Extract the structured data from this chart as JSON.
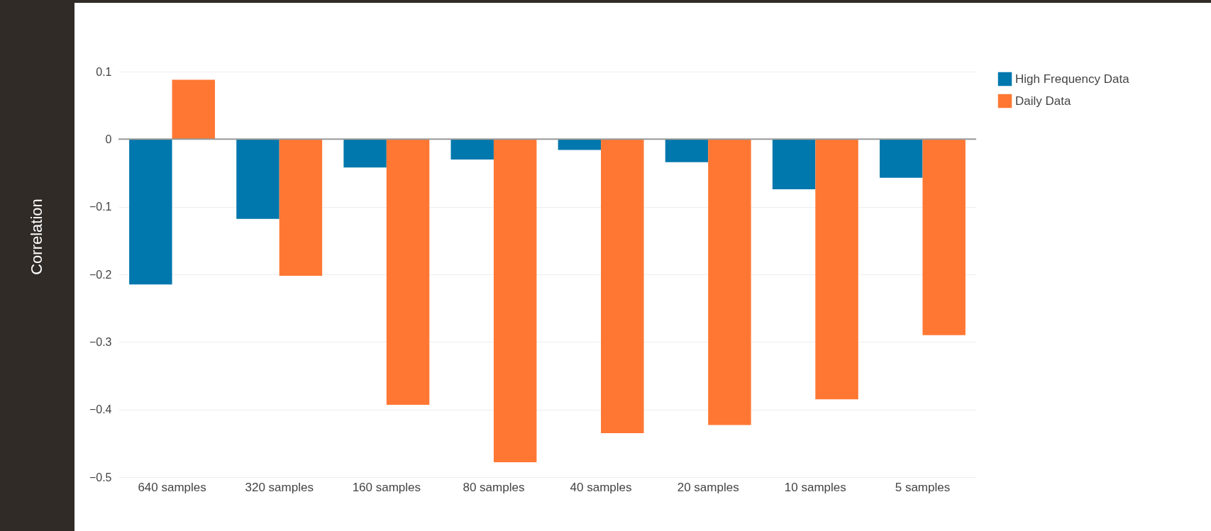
{
  "chart_data": {
    "type": "bar",
    "ylabel": "Correlation",
    "categories": [
      "640  samples",
      "320 samples",
      "160 samples",
      "80 samples",
      "40 samples",
      "20 samples",
      "10 samples",
      "5 samples"
    ],
    "series": [
      {
        "name": "High Frequency Data",
        "color": "#0077ad",
        "values": [
          -0.215,
          -0.118,
          -0.042,
          -0.03,
          -0.016,
          -0.034,
          -0.074,
          -0.057
        ]
      },
      {
        "name": "Daily Data",
        "color": "#ff7733",
        "values": [
          0.088,
          -0.202,
          -0.393,
          -0.478,
          -0.435,
          -0.423,
          -0.385,
          -0.29
        ]
      }
    ],
    "ylim": [
      -0.5,
      0.1
    ],
    "yticks": [
      -0.5,
      -0.4,
      -0.3,
      -0.2,
      -0.1,
      0,
      0.1
    ],
    "ref_lines": [
      {
        "axis": "y",
        "value": 0,
        "color": "#999999"
      }
    ],
    "grid": "y",
    "legend": "top right"
  }
}
